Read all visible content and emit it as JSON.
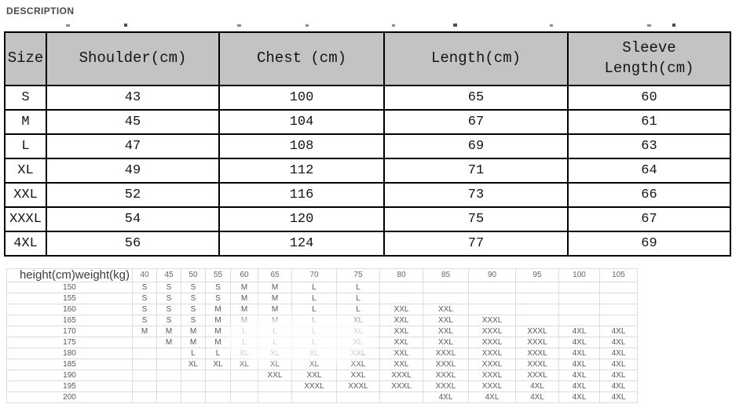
{
  "section": {
    "title": "DESCRIPTION"
  },
  "size_table": {
    "headers": [
      "Size",
      "Shoulder(cm)",
      "Chest (cm)",
      "Length(cm)",
      "Sleeve\nLength(cm)"
    ],
    "rows": [
      {
        "size": "S",
        "shoulder": "43",
        "chest": "100",
        "length": "65",
        "sleeve": "60"
      },
      {
        "size": "M",
        "shoulder": "45",
        "chest": "104",
        "length": "67",
        "sleeve": "61"
      },
      {
        "size": "L",
        "shoulder": "47",
        "chest": "108",
        "length": "69",
        "sleeve": "63"
      },
      {
        "size": "XL",
        "shoulder": "49",
        "chest": "112",
        "length": "71",
        "sleeve": "64"
      },
      {
        "size": "XXL",
        "shoulder": "52",
        "chest": "116",
        "length": "73",
        "sleeve": "66"
      },
      {
        "size": "XXXL",
        "shoulder": "54",
        "chest": "120",
        "length": "75",
        "sleeve": "67"
      },
      {
        "size": "4XL",
        "shoulder": "56",
        "chest": "124",
        "length": "77",
        "sleeve": "69"
      }
    ]
  },
  "fit_matrix": {
    "corner_label": "height(cm)weight(kg)",
    "weight_columns": [
      "40",
      "45",
      "50",
      "55",
      "60",
      "65",
      "70",
      "75",
      "80",
      "85",
      "90",
      "95",
      "100",
      "105"
    ],
    "rows": [
      {
        "height": "150",
        "cells": [
          "S",
          "S",
          "S",
          "S",
          "M",
          "M",
          "L",
          "L",
          "",
          "",
          "",
          "",
          "",
          ""
        ]
      },
      {
        "height": "155",
        "cells": [
          "S",
          "S",
          "S",
          "S",
          "M",
          "M",
          "L",
          "L",
          "",
          "",
          "",
          "",
          "",
          ""
        ]
      },
      {
        "height": "160",
        "cells": [
          "S",
          "S",
          "S",
          "M",
          "M",
          "M",
          "L",
          "L",
          "XXL",
          "XXL",
          "",
          "",
          "",
          ""
        ]
      },
      {
        "height": "165",
        "cells": [
          "S",
          "S",
          "S",
          "M",
          "M",
          "M",
          "L",
          "XL",
          "XXL",
          "XXL",
          "XXXL",
          "",
          "",
          ""
        ]
      },
      {
        "height": "170",
        "cells": [
          "M",
          "M",
          "M",
          "M",
          "L",
          "L",
          "L",
          "XL",
          "XXL",
          "XXL",
          "XXXL",
          "XXXL",
          "4XL",
          "4XL"
        ]
      },
      {
        "height": "175",
        "cells": [
          "",
          "M",
          "M",
          "M",
          "L",
          "L",
          "L",
          "XL",
          "XXL",
          "XXL",
          "XXXL",
          "XXXL",
          "4XL",
          "4XL"
        ]
      },
      {
        "height": "180",
        "cells": [
          "",
          "",
          "L",
          "L",
          "XL",
          "XL",
          "XL",
          "XXL",
          "XXL",
          "XXXL",
          "XXXL",
          "XXXL",
          "4XL",
          "4XL"
        ]
      },
      {
        "height": "185",
        "cells": [
          "",
          "",
          "XL",
          "XL",
          "XL",
          "XL",
          "XL",
          "XXL",
          "XXL",
          "XXXL",
          "XXXL",
          "XXXL",
          "4XL",
          "4XL"
        ]
      },
      {
        "height": "190",
        "cells": [
          "",
          "",
          "",
          "",
          "",
          "XXL",
          "XXL",
          "XXL",
          "XXXL",
          "XXXL",
          "XXXL",
          "XXXL",
          "4XL",
          "4XL"
        ]
      },
      {
        "height": "195",
        "cells": [
          "",
          "",
          "",
          "",
          "",
          "",
          "XXXL",
          "XXXL",
          "XXXL",
          "XXXL",
          "XXXL",
          "4XL",
          "4XL",
          "4XL"
        ]
      },
      {
        "height": "200",
        "cells": [
          "",
          "",
          "",
          "",
          "",
          "",
          "",
          "",
          "",
          "4XL",
          "4XL",
          "4XL",
          "4XL",
          "4XL"
        ]
      }
    ]
  }
}
